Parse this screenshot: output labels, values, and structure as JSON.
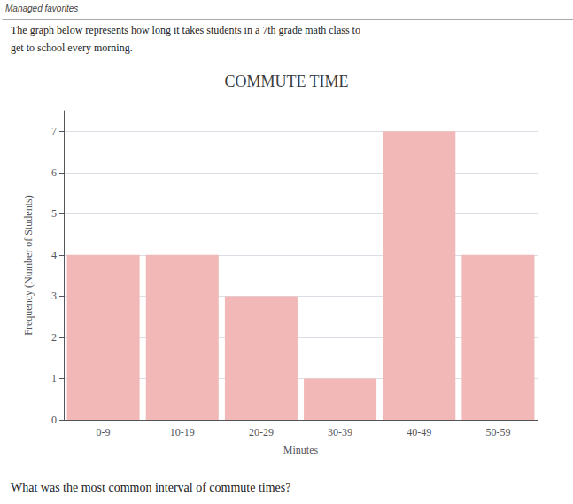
{
  "chart_data": {
    "type": "bar",
    "title": "COMMUTE TIME",
    "xlabel": "Minutes",
    "ylabel": "Frequency (Number of Students)",
    "categories": [
      "0-9",
      "10-19",
      "20-29",
      "30-39",
      "40-49",
      "50-59"
    ],
    "values": [
      4,
      4,
      3,
      1,
      7,
      4
    ],
    "color": "#f2b8b8",
    "ylim": [
      0,
      7.5
    ],
    "yticks": [
      0,
      1,
      2,
      3,
      4,
      5,
      6,
      7
    ],
    "grid": true,
    "annotations": [
      "Managed favorites",
      "The graph below represents how long it takes students in a 7th grade math class to",
      "get to school every morning.",
      "What was the most common interval of commute times?"
    ]
  }
}
